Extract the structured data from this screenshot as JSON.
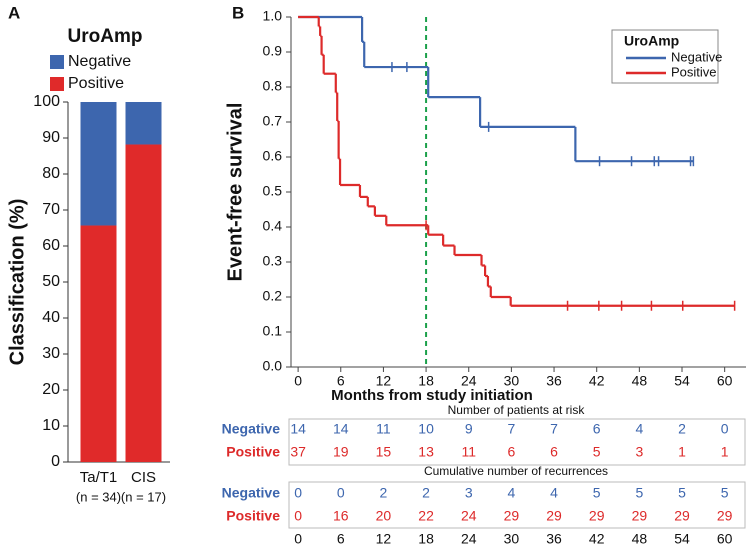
{
  "chart_data": [
    {
      "type": "stacked_bar",
      "panel_label": "A",
      "legend_title": "UroAmp",
      "ylabel": "Classification (%)",
      "categories": [
        "Ta/T1",
        "CIS"
      ],
      "category_notes": [
        "(n = 34)",
        "(n = 17)"
      ],
      "series": [
        {
          "name": "Negative",
          "color": "#3d66ae",
          "values": [
            34.3,
            11.8
          ]
        },
        {
          "name": "Positive",
          "color": "#e02a2a",
          "values": [
            65.7,
            88.2
          ]
        }
      ],
      "ylim": [
        0,
        100
      ],
      "yticks": [
        0,
        10,
        20,
        30,
        40,
        50,
        60,
        70,
        80,
        90,
        100
      ]
    },
    {
      "type": "step",
      "panel_label": "B",
      "legend_title": "UroAmp",
      "legend": "upper right",
      "xlabel": "Months from study initiation",
      "ylabel": "Event-free survival",
      "xlim": [
        -1,
        63
      ],
      "ylim": [
        0,
        1
      ],
      "xticks": [
        0,
        6,
        12,
        18,
        24,
        30,
        36,
        42,
        48,
        54,
        60
      ],
      "yticks": [
        {
          "value": 0,
          "label": "0.0"
        },
        0.1,
        0.2,
        0.3,
        0.4,
        0.5,
        0.6,
        0.7,
        0.8,
        0.9,
        {
          "value": 1,
          "label": "1.0"
        }
      ],
      "reference_line": {
        "x": 18,
        "color": "#1aa04a"
      },
      "series": [
        {
          "name": "Negative",
          "color": "#3d66ae",
          "x": [
            0,
            9,
            9.3,
            18.3,
            25.6,
            39,
            55.6
          ],
          "y": [
            1.0,
            0.929,
            0.857,
            0.771,
            0.686,
            0.588,
            0.588
          ],
          "censored": {
            "x": [
              13.2,
              15.3,
              26.8,
              42.4,
              46.9,
              50.1,
              50.7,
              55.2,
              55.6
            ],
            "y": [
              0.857,
              0.857,
              0.686,
              0.588,
              0.588,
              0.588,
              0.588,
              0.588,
              0.588
            ]
          }
        },
        {
          "name": "Positive",
          "color": "#dd2a2a",
          "x": [
            0,
            2.9,
            3.1,
            3.3,
            3.6,
            5.3,
            5.5,
            5.7,
            5.9,
            8.7,
            9.8,
            10.8,
            12.4,
            18.3,
            20.4,
            22,
            25.8,
            26.3,
            26.7,
            27.1,
            29.9,
            61.4
          ],
          "y": [
            1.0,
            0.973,
            0.946,
            0.892,
            0.838,
            0.784,
            0.703,
            0.595,
            0.52,
            0.486,
            0.459,
            0.432,
            0.405,
            0.378,
            0.347,
            0.32,
            0.29,
            0.26,
            0.23,
            0.2,
            0.175,
            0.175
          ],
          "censored": {
            "x": [
              18.0,
              37.9,
              42.3,
              45.5,
              49.7,
              54.1,
              61.4
            ],
            "y": [
              0.405,
              0.175,
              0.175,
              0.175,
              0.175,
              0.175,
              0.175
            ]
          }
        }
      ]
    }
  ],
  "tables": {
    "times": [
      0,
      6,
      12,
      18,
      24,
      30,
      36,
      42,
      48,
      54,
      60
    ],
    "risk": {
      "title": "Number of patients at risk",
      "rows": [
        {
          "label": "Negative",
          "values": [
            14,
            14,
            11,
            10,
            9,
            7,
            7,
            6,
            4,
            2,
            0
          ]
        },
        {
          "label": "Positive",
          "values": [
            37,
            19,
            15,
            13,
            11,
            6,
            6,
            5,
            3,
            1,
            1
          ]
        }
      ]
    },
    "recurrences": {
      "title": "Cumulative number of recurrences",
      "rows": [
        {
          "label": "Negative",
          "values": [
            0,
            0,
            2,
            2,
            3,
            4,
            4,
            5,
            5,
            5,
            5
          ]
        },
        {
          "label": "Positive",
          "values": [
            0,
            16,
            20,
            22,
            24,
            29,
            29,
            29,
            29,
            29,
            29
          ]
        }
      ]
    }
  }
}
